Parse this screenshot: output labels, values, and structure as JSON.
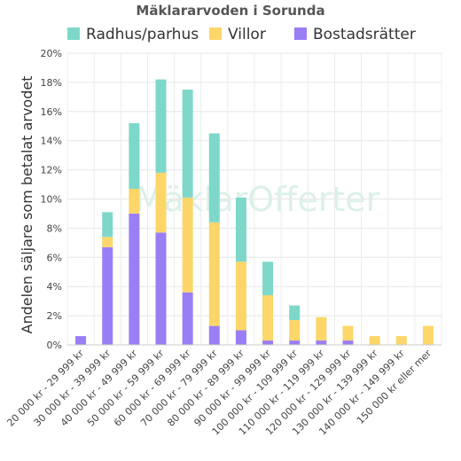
{
  "chart_data": {
    "type": "bar",
    "stacked": true,
    "title": "Mäklararvoden i Sorunda",
    "ylabel": "Andelen säljare som betalat arvodet",
    "xlabel": "",
    "ylim": [
      0,
      20
    ],
    "yticks": [
      "0%",
      "2%",
      "4%",
      "6%",
      "8%",
      "10%",
      "12%",
      "14%",
      "16%",
      "18%",
      "20%"
    ],
    "grid": true,
    "legend_position": "top",
    "watermark": "MäklarOfferter",
    "categories": [
      "20 000 kr - 29 999 kr",
      "30 000 kr - 39 999 kr",
      "40 000 kr - 49 999 kr",
      "50 000 kr - 59 999 kr",
      "60 000 kr - 69 999 kr",
      "70 000 kr - 79 999 kr",
      "80 000 kr - 89 999 kr",
      "90 000 kr - 99 999 kr",
      "100 000 kr - 109 999 kr",
      "110 000 kr - 119 999 kr",
      "120 000 kr - 129 999 kr",
      "130 000 kr - 139 999 kr",
      "140 000 kr - 149 999 kr",
      "150 000 kr eller mer"
    ],
    "series": [
      {
        "name": "Bostadsrätter",
        "color": "#9a7ef5",
        "values": [
          0.6,
          6.7,
          9.0,
          7.7,
          3.6,
          1.3,
          1.0,
          0.3,
          0.3,
          0.3,
          0.3,
          0,
          0,
          0
        ]
      },
      {
        "name": "Villor",
        "color": "#fcd669",
        "values": [
          0,
          0.7,
          1.7,
          4.1,
          6.5,
          7.1,
          4.7,
          3.1,
          1.4,
          1.6,
          1.0,
          0.6,
          0.6,
          1.3
        ]
      },
      {
        "name": "Radhus/parhus",
        "color": "#7dd8ca",
        "values": [
          0,
          1.7,
          4.5,
          6.4,
          7.4,
          6.1,
          4.4,
          2.3,
          1.0,
          0,
          0,
          0,
          0,
          0
        ]
      }
    ],
    "legend_order": [
      "Radhus/parhus",
      "Villor",
      "Bostadsrätter"
    ]
  }
}
